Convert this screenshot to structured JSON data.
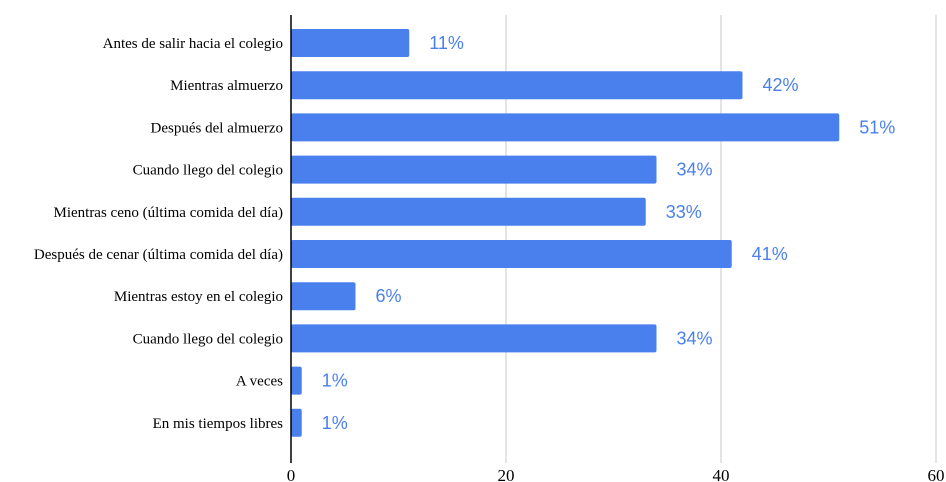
{
  "chart_data": {
    "type": "bar",
    "orientation": "horizontal",
    "title": "",
    "xlabel": "",
    "ylabel": "",
    "categories": [
      "Antes de salir hacia el colegio",
      "Mientras almuerzo",
      "Después del almuerzo",
      "Cuando llego del colegio",
      "Mientras ceno (última comida del día)",
      "Después de cenar (última comida del día)",
      "Mientras estoy en el colegio",
      "Cuando llego del colegio",
      "A veces",
      "En mis tiempos libres"
    ],
    "values": [
      11,
      42,
      51,
      34,
      33,
      41,
      6,
      34,
      1,
      1
    ],
    "data_labels": [
      "11%",
      "42%",
      "51%",
      "34%",
      "33%",
      "41%",
      "6%",
      "34%",
      "1%",
      "1%"
    ],
    "xlim": [
      0,
      60
    ],
    "x_ticks": [
      0,
      20,
      40,
      60
    ],
    "x_tick_labels": [
      "0",
      "20",
      "40",
      "60"
    ],
    "grid": true,
    "legend": "none",
    "colors": {
      "bar": "#4a80ee",
      "data_label": "#4a80ee",
      "grid": "#c8c8c8",
      "axis": "#000000"
    }
  }
}
